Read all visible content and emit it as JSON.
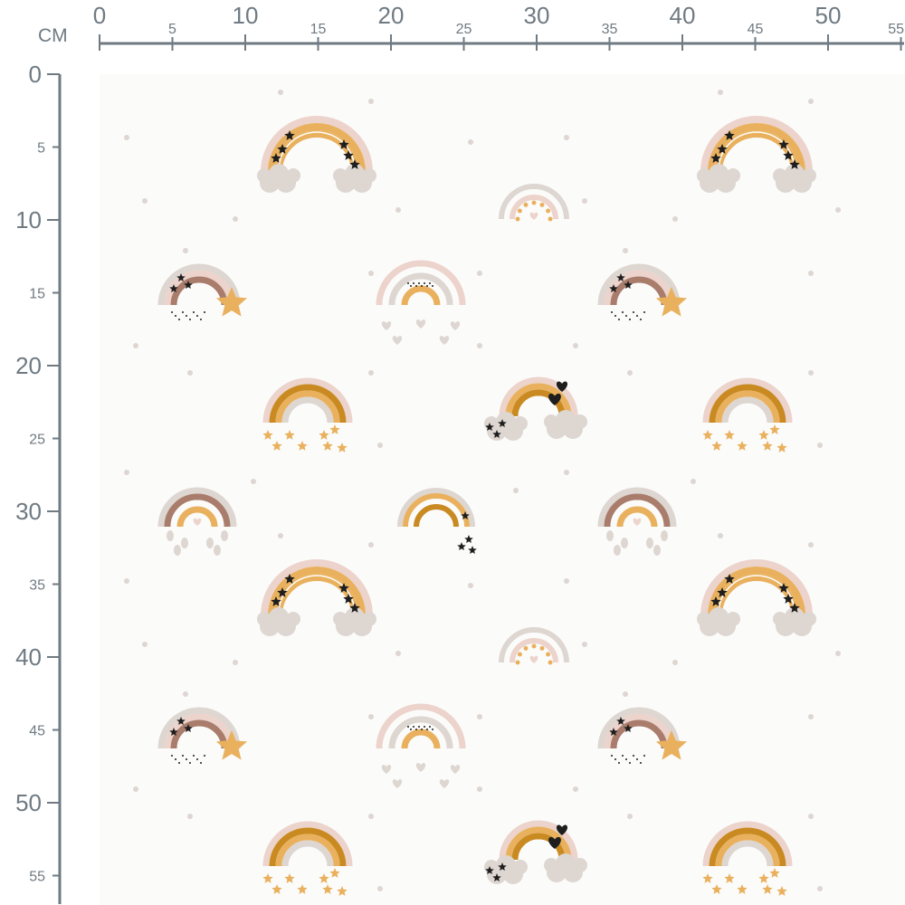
{
  "ruler": {
    "unit": "CM",
    "horizontal_labels": [
      "0",
      "5",
      "10",
      "15",
      "20",
      "25",
      "30",
      "35",
      "40",
      "45",
      "50",
      "55"
    ],
    "vertical_labels": [
      "0",
      "5",
      "10",
      "15",
      "20",
      "25",
      "30",
      "35",
      "40",
      "45",
      "50",
      "55"
    ]
  },
  "fabric": {
    "pattern": "boho rainbows with stars, clouds, hearts and dots",
    "palette": {
      "background": "#fbfbfa",
      "blush": "#ecd3cb",
      "mustard": "#e9b15e",
      "ochre": "#c98a22",
      "cocoa": "#a97c6c",
      "taupe": "#ddd6d1",
      "black": "#1e1e1e",
      "ruler": "#6f7a82"
    }
  }
}
